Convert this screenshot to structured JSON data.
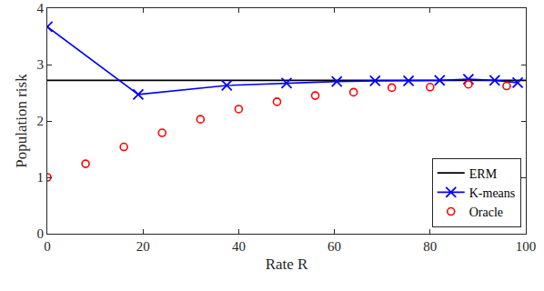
{
  "chart_data": {
    "type": "line",
    "x_label": "Rate R",
    "y_label": "Population risk",
    "xlim": [
      0,
      100
    ],
    "xticks": [
      0,
      20,
      40,
      60,
      80,
      100
    ],
    "ylim": [
      0,
      4
    ],
    "yticks": [
      0,
      1,
      2,
      3,
      4
    ],
    "grid": false,
    "legend": "lower right",
    "series": [
      {
        "name": "ERM",
        "type": "line",
        "color": "#000000",
        "line_style": "solid",
        "marker": "none",
        "x": [
          0,
          100
        ],
        "values": [
          2.72,
          2.72
        ]
      },
      {
        "name": "K-means",
        "type": "line",
        "color": "#0000ff",
        "line_style": "solid",
        "marker": "x",
        "x": [
          0,
          19,
          37.5,
          50,
          60.5,
          68.5,
          75.5,
          82,
          88,
          93.5,
          98.3
        ],
        "values": [
          3.67,
          2.47,
          2.63,
          2.67,
          2.7,
          2.71,
          2.71,
          2.72,
          2.74,
          2.72,
          2.68
        ]
      },
      {
        "name": "Oracle",
        "type": "scatter",
        "color": "#ff0000",
        "line_style": "none",
        "marker": "circle-open",
        "x": [
          0,
          8,
          16,
          24,
          32,
          40,
          48,
          56,
          64,
          72,
          80,
          88,
          96
        ],
        "values": [
          1.0,
          1.24,
          1.54,
          1.79,
          2.03,
          2.21,
          2.34,
          2.45,
          2.51,
          2.59,
          2.6,
          2.65,
          2.62
        ]
      }
    ]
  }
}
